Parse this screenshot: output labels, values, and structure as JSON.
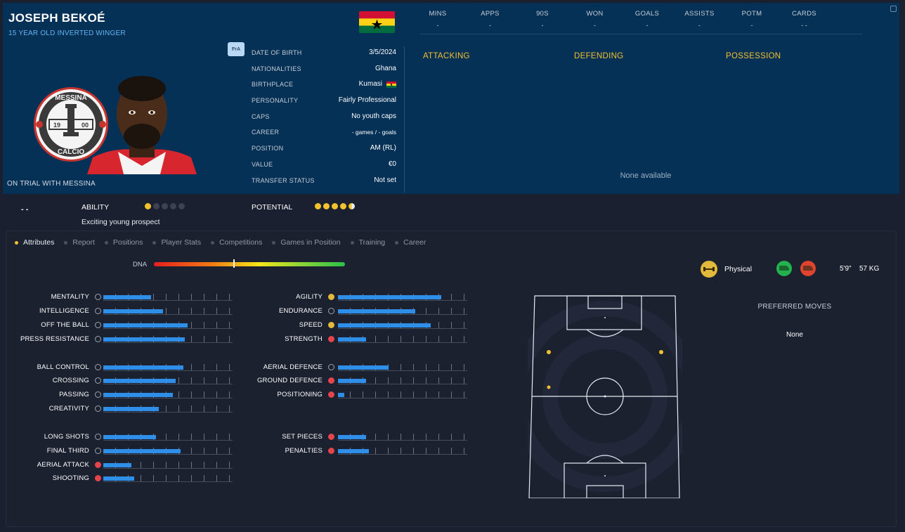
{
  "player": {
    "name": "Joseph Bekoé",
    "subtitle": "15 YEAR OLD  INVERTED WINGER",
    "status": "ON TRIAL WITH MESSINA",
    "squad_badge": "FrA"
  },
  "club_badge": {
    "top_text": "MESSINA",
    "bottom_text": "CALCIO",
    "year_left": "19",
    "year_right": "00"
  },
  "details": [
    {
      "label": "DATE OF BIRTH",
      "value": "3/5/2024"
    },
    {
      "label": "NATIONALITIES",
      "value": "Ghana"
    },
    {
      "label": "BIRTHPLACE",
      "value": "Kumasi"
    },
    {
      "label": "PERSONALITY",
      "value": "Fairly Professional"
    },
    {
      "label": "CAPS",
      "value": "No youth caps"
    },
    {
      "label": "CAREER",
      "value": "-  games /     -  goals"
    },
    {
      "label": "POSITION",
      "value": "AM (RL)"
    },
    {
      "label": "VALUE",
      "value": "€0"
    },
    {
      "label": "TRANSFER STATUS",
      "value": "Not set"
    }
  ],
  "season_stats": [
    {
      "label": "MINS",
      "value": "-"
    },
    {
      "label": "APPS",
      "value": "-"
    },
    {
      "label": "90S",
      "value": "-"
    },
    {
      "label": "WON",
      "value": "-"
    },
    {
      "label": "GOALS",
      "value": "-"
    },
    {
      "label": "ASSISTS",
      "value": "-"
    },
    {
      "label": "POTM",
      "value": "-"
    },
    {
      "label": "CARDS",
      "value": "- -"
    }
  ],
  "sections": {
    "attacking": "ATTACKING",
    "defending": "DEFENDING",
    "possession": "POSSESSION"
  },
  "none_available": "None available",
  "rating": {
    "dash": "- -",
    "ability_label": "ABILITY",
    "ability_stars": 1,
    "potential_label": "POTENTIAL",
    "potential_stars": 4.5,
    "max_stars": 5,
    "description": "Exciting young prospect"
  },
  "tabs": [
    "Attributes",
    "Report",
    "Positions",
    "Player Stats",
    "Competitions",
    "Games in Position",
    "Training",
    "Career"
  ],
  "active_tab": 0,
  "dna": {
    "label": "DNA",
    "level": 0.42
  },
  "attributes_left": [
    {
      "label": "MENTALITY",
      "level": 0.37,
      "icon": "pie-icon"
    },
    {
      "label": "INTELLIGENCE",
      "level": 0.46,
      "icon": "pie-icon"
    },
    {
      "label": "OFF THE BALL",
      "level": 0.65,
      "icon": "gauge-icon"
    },
    {
      "label": "PRESS RESISTANCE",
      "level": 0.63,
      "icon": "gauge-icon"
    },
    {
      "label": "BALL CONTROL",
      "level": 0.62,
      "icon": "gauge-icon"
    },
    {
      "label": "CROSSING",
      "level": 0.56,
      "icon": "gauge-icon"
    },
    {
      "label": "PASSING",
      "level": 0.54,
      "icon": "gauge-icon"
    },
    {
      "label": "CREATIVITY",
      "level": 0.43,
      "icon": "gauge-icon"
    },
    {
      "label": "LONG SHOTS",
      "level": 0.41,
      "icon": "pie-icon"
    },
    {
      "label": "FINAL THIRD",
      "level": 0.6,
      "icon": "gauge-icon"
    },
    {
      "label": "AERIAL ATTACK",
      "level": 0.22,
      "icon": "red-icon"
    },
    {
      "label": "SHOOTING",
      "level": 0.24,
      "icon": "red-icon"
    }
  ],
  "attributes_right": [
    {
      "label": "AGILITY",
      "level": 0.8,
      "icon": "gold-icon"
    },
    {
      "label": "ENDURANCE",
      "level": 0.6,
      "icon": "pie-icon"
    },
    {
      "label": "SPEED",
      "level": 0.72,
      "icon": "gold-icon"
    },
    {
      "label": "STRENGTH",
      "level": 0.22,
      "icon": "red-icon"
    },
    {
      "label": "AERIAL DEFENCE",
      "level": 0.39,
      "icon": "pie-icon"
    },
    {
      "label": "GROUND DEFENCE",
      "level": 0.22,
      "icon": "red-icon"
    },
    {
      "label": "POSITIONING",
      "level": 0.05,
      "icon": "red-icon"
    },
    {
      "label": "SET PIECES",
      "level": 0.22,
      "icon": "red-icon"
    },
    {
      "label": "PENALTIES",
      "level": 0.24,
      "icon": "red-icon"
    }
  ],
  "physical": {
    "label": "Physical",
    "height": "5'9\"",
    "weight": "57 KG"
  },
  "preferred_moves": {
    "title": "PREFERRED MOVES",
    "value": "None"
  },
  "colors": {
    "accent": "#f2c12e",
    "bar": "#2f8fe8",
    "header_bg": "#053157",
    "left_foot": "#23b24d",
    "right_foot": "#e0432e"
  }
}
